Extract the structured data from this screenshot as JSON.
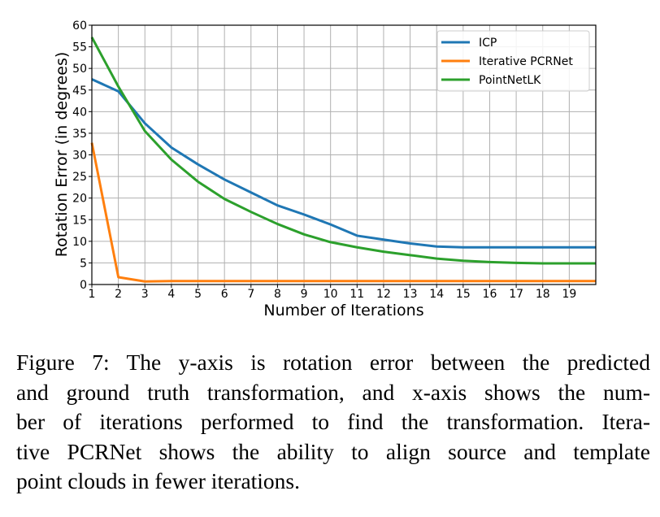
{
  "chart_data": {
    "type": "line",
    "xlabel": "Number of Iterations",
    "ylabel": "Rotation Error (in degrees)",
    "xlim": [
      1,
      20
    ],
    "ylim": [
      0,
      60
    ],
    "xticks": [
      1,
      2,
      3,
      4,
      5,
      6,
      7,
      8,
      9,
      10,
      11,
      12,
      13,
      14,
      15,
      16,
      17,
      18,
      19
    ],
    "yticks": [
      0,
      5,
      10,
      15,
      20,
      25,
      30,
      35,
      40,
      45,
      50,
      55,
      60
    ],
    "grid": true,
    "legend_position": "top-right",
    "x": [
      1,
      2,
      3,
      4,
      5,
      6,
      7,
      8,
      9,
      10,
      11,
      12,
      13,
      14,
      15,
      16,
      17,
      18,
      19,
      20
    ],
    "series": [
      {
        "name": "ICP",
        "color": "#1f77b4",
        "values": [
          47.5,
          44.7,
          37.3,
          31.7,
          27.8,
          24.3,
          21.3,
          18.3,
          16.2,
          13.9,
          11.3,
          10.4,
          9.5,
          8.8,
          8.6,
          8.6,
          8.6,
          8.6,
          8.6,
          8.6
        ]
      },
      {
        "name": "Iterative PCRNet",
        "color": "#ff7f0e",
        "values": [
          32.8,
          1.7,
          0.7,
          0.8,
          0.8,
          0.8,
          0.8,
          0.8,
          0.8,
          0.8,
          0.8,
          0.8,
          0.8,
          0.8,
          0.8,
          0.8,
          0.8,
          0.8,
          0.8,
          0.8
        ]
      },
      {
        "name": "PointNetLK",
        "color": "#2ca02c",
        "values": [
          57.2,
          45.8,
          35.5,
          28.9,
          23.8,
          19.8,
          16.8,
          14.0,
          11.6,
          9.8,
          8.6,
          7.6,
          6.8,
          6.0,
          5.5,
          5.2,
          5.0,
          4.9,
          4.9,
          4.9
        ]
      }
    ]
  },
  "caption": {
    "lines": [
      "Figure 7: The y-axis is rotation error between the predicted",
      "and ground truth transformation, and x-axis shows the num-",
      "ber of iterations performed to find the transformation. Itera-",
      "tive PCRNet shows the ability to align source and template",
      "point clouds in fewer iterations."
    ]
  }
}
